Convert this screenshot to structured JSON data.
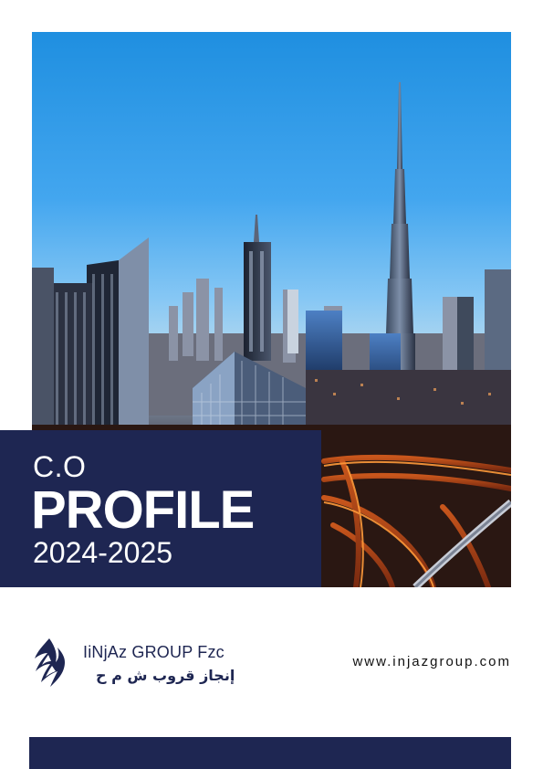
{
  "cover": {
    "label_small": "C.O",
    "label_big": "PROFILE",
    "years": "2024-2025"
  },
  "brand": {
    "name": "IiNjAz GROUP Fzc",
    "name_arabic": "إنجاز قروب ش م ح",
    "website": "www.injazgroup.com",
    "logo_icon": "injaz-logo-icon"
  },
  "hero_image": {
    "subject": "dubai-skyline-photo"
  },
  "colors": {
    "navy": "#1e2652",
    "white": "#ffffff"
  }
}
